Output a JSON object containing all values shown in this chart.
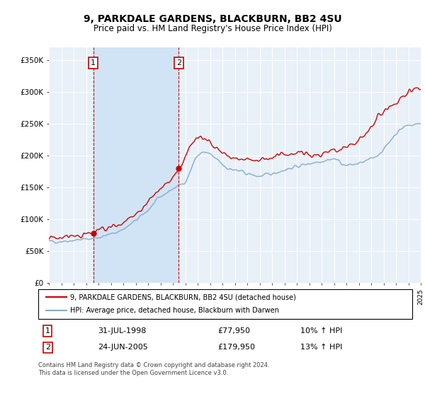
{
  "title": "9, PARKDALE GARDENS, BLACKBURN, BB2 4SU",
  "subtitle": "Price paid vs. HM Land Registry's House Price Index (HPI)",
  "ylim": [
    0,
    370000
  ],
  "yticks": [
    0,
    50000,
    100000,
    150000,
    200000,
    250000,
    300000,
    350000
  ],
  "x_start_year": 1995,
  "x_end_year": 2025,
  "sale1_date": 1998.58,
  "sale1_price": 77950,
  "sale1_label": "1",
  "sale2_date": 2005.48,
  "sale2_price": 179950,
  "sale2_label": "2",
  "red_color": "#cc0000",
  "blue_color": "#88aacc",
  "shade_color": "#d0e4f5",
  "bg_color": "#e8f0f8",
  "grid_color": "#ffffff",
  "legend_label_red": "9, PARKDALE GARDENS, BLACKBURN, BB2 4SU (detached house)",
  "legend_label_blue": "HPI: Average price, detached house, Blackburn with Darwen",
  "footer_text": "Contains HM Land Registry data © Crown copyright and database right 2024.\nThis data is licensed under the Open Government Licence v3.0.",
  "annotation1_date": "31-JUL-1998",
  "annotation1_price": "£77,950",
  "annotation1_hpi": "10% ↑ HPI",
  "annotation2_date": "24-JUN-2005",
  "annotation2_price": "£179,950",
  "annotation2_hpi": "13% ↑ HPI",
  "hpi_knots_x": [
    1995.0,
    1996.0,
    1997.0,
    1998.0,
    1999.0,
    2000.0,
    2001.0,
    2002.0,
    2003.0,
    2004.0,
    2005.0,
    2006.0,
    2007.0,
    2007.5,
    2008.5,
    2009.5,
    2010.5,
    2011.0,
    2012.0,
    2013.0,
    2014.0,
    2015.0,
    2016.0,
    2017.0,
    2018.0,
    2019.0,
    2020.0,
    2021.0,
    2022.0,
    2023.0,
    2024.0,
    2025.0
  ],
  "hpi_knots_y": [
    65000,
    66000,
    67500,
    69000,
    72000,
    77000,
    85000,
    98000,
    115000,
    135000,
    148000,
    160000,
    200000,
    205000,
    195000,
    180000,
    175000,
    172000,
    168000,
    172000,
    178000,
    183000,
    188000,
    192000,
    195000,
    185000,
    188000,
    195000,
    210000,
    235000,
    248000,
    250000
  ],
  "red_knots_x": [
    1995.0,
    1996.0,
    1997.0,
    1998.0,
    1998.58,
    1999.0,
    2000.0,
    2001.0,
    2002.0,
    2003.0,
    2004.0,
    2005.0,
    2005.48,
    2006.0,
    2007.0,
    2007.7,
    2008.5,
    2009.5,
    2010.5,
    2011.5,
    2012.5,
    2013.5,
    2014.5,
    2015.5,
    2016.5,
    2017.5,
    2018.5,
    2019.5,
    2020.5,
    2021.5,
    2022.5,
    2023.5,
    2024.5,
    2025.0
  ],
  "red_knots_y": [
    70000,
    72000,
    74000,
    76000,
    77950,
    82000,
    88000,
    95000,
    108000,
    128000,
    148000,
    165000,
    179950,
    198000,
    232000,
    225000,
    212000,
    200000,
    195000,
    192000,
    195000,
    200000,
    202000,
    205000,
    200000,
    205000,
    210000,
    218000,
    232000,
    258000,
    278000,
    290000,
    305000,
    308000
  ]
}
